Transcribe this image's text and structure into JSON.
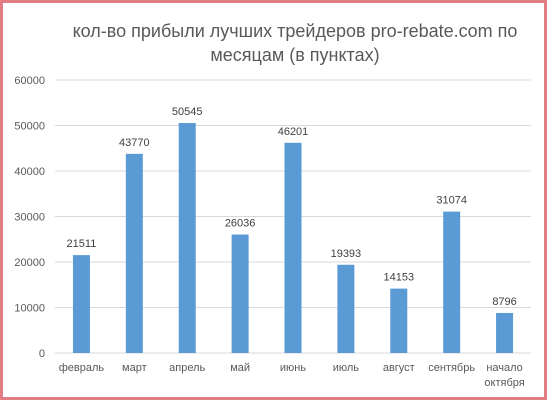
{
  "chart_data": {
    "type": "bar",
    "title": "кол-во прибыли лучших трейдеров pro-rebate.com по месяцам (в пунктах)",
    "title_lines": [
      "кол-во прибыли лучших трейдеров pro-rebate.com по",
      "месяцам (в пунктах)"
    ],
    "xlabel": "",
    "ylabel": "",
    "categories": [
      "февраль",
      "март",
      "апрель",
      "май",
      "июнь",
      "июль",
      "август",
      "сентябрь",
      "начало октября"
    ],
    "category_lines": [
      [
        "февраль"
      ],
      [
        "март"
      ],
      [
        "апрель"
      ],
      [
        "май"
      ],
      [
        "июнь"
      ],
      [
        "июль"
      ],
      [
        "август"
      ],
      [
        "сентябрь"
      ],
      [
        "начало",
        "октября"
      ]
    ],
    "values": [
      21511,
      43770,
      50545,
      26036,
      46201,
      19393,
      14153,
      31074,
      8796
    ],
    "data_labels": [
      "21511",
      "43770",
      "50545",
      "26036",
      "46201",
      "19393",
      "14153",
      "31074",
      "8796"
    ],
    "ylim": [
      0,
      60000
    ],
    "y_ticks": [
      0,
      10000,
      20000,
      30000,
      40000,
      50000,
      60000
    ],
    "y_tick_labels": [
      "0",
      "10000",
      "20000",
      "30000",
      "40000",
      "50000",
      "60000"
    ],
    "grid": true,
    "legend": "none",
    "bar_color": "#5b9bd5",
    "grid_color": "#d9d9d9",
    "border_color": "#e37c84"
  }
}
